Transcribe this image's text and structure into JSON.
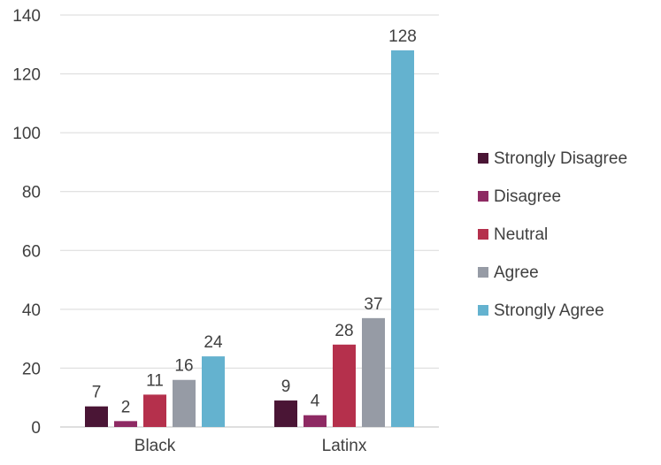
{
  "chart_data": {
    "type": "bar",
    "title": "",
    "xlabel": "",
    "ylabel": "",
    "categories": [
      "Black",
      "Latinx"
    ],
    "series": [
      {
        "name": "Strongly Disagree",
        "color": "#4a1535",
        "values": [
          7,
          9
        ]
      },
      {
        "name": "Disagree",
        "color": "#8e2a63",
        "values": [
          2,
          4
        ]
      },
      {
        "name": "Neutral",
        "color": "#b5304c",
        "values": [
          11,
          28
        ]
      },
      {
        "name": "Agree",
        "color": "#969ba5",
        "values": [
          16,
          37
        ]
      },
      {
        "name": "Strongly Agree",
        "color": "#64b2cf",
        "values": [
          24,
          128
        ]
      }
    ],
    "ylim": [
      0,
      140
    ],
    "yticks": [
      0,
      20,
      40,
      60,
      80,
      100,
      120,
      140
    ],
    "grid": true,
    "legend_position": "right",
    "data_labels": true
  }
}
